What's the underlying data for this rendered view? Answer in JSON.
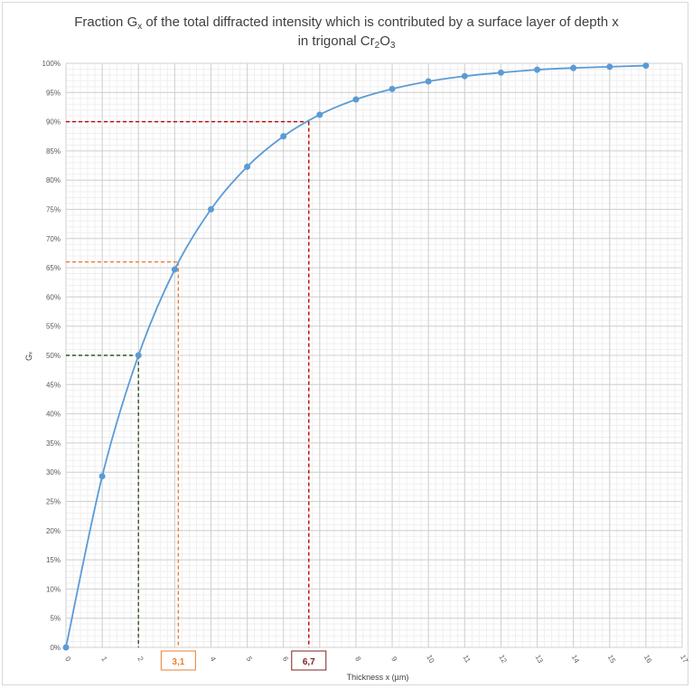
{
  "title": {
    "line1_prefix": "Fraction G",
    "line1_sub": "x",
    "line1_suffix": " of the total diffracted intensity which is contributed by a surface layer of depth x",
    "line2_prefix": "in trigonal Cr",
    "line2_sub1": "2",
    "line2_mid": "O",
    "line2_sub2": "3"
  },
  "chart_data": {
    "type": "line",
    "xlabel": "Thickness x (µm)",
    "ylabel": "Gₓ",
    "xlim": [
      0,
      17
    ],
    "ylim": [
      0,
      1
    ],
    "x_ticks": [
      "0",
      "1",
      "2",
      "3",
      "4",
      "5",
      "6",
      "7",
      "8",
      "9",
      "10",
      "11",
      "12",
      "13",
      "14",
      "15",
      "16",
      "17"
    ],
    "y_ticks": [
      "0%",
      "5%",
      "10%",
      "15%",
      "20%",
      "25%",
      "30%",
      "35%",
      "40%",
      "45%",
      "50%",
      "55%",
      "60%",
      "65%",
      "70%",
      "75%",
      "80%",
      "85%",
      "90%",
      "95%",
      "100%"
    ],
    "grid": true,
    "series": [
      {
        "color": "#5b9bd5",
        "x": [
          0,
          1,
          2,
          3,
          4,
          5,
          6,
          7,
          8,
          9,
          10,
          11,
          12,
          13,
          14,
          15,
          16
        ],
        "y": [
          0,
          0.293,
          0.5,
          0.647,
          0.75,
          0.823,
          0.875,
          0.912,
          0.938,
          0.956,
          0.969,
          0.978,
          0.984,
          0.989,
          0.992,
          0.994,
          0.996
        ]
      }
    ],
    "reference_lines": [
      {
        "x": 2.0,
        "y": 0.5,
        "color": "#375623"
      },
      {
        "x": 3.1,
        "y": 0.66,
        "color": "#ed7d31"
      },
      {
        "x": 6.7,
        "y": 0.9,
        "color": "#c00000"
      }
    ],
    "callouts": [
      {
        "label": "3,1",
        "x": 3.1,
        "color": "#ed7d31"
      },
      {
        "label": "6,7",
        "x": 6.7,
        "color": "#7f1f1f"
      }
    ]
  }
}
